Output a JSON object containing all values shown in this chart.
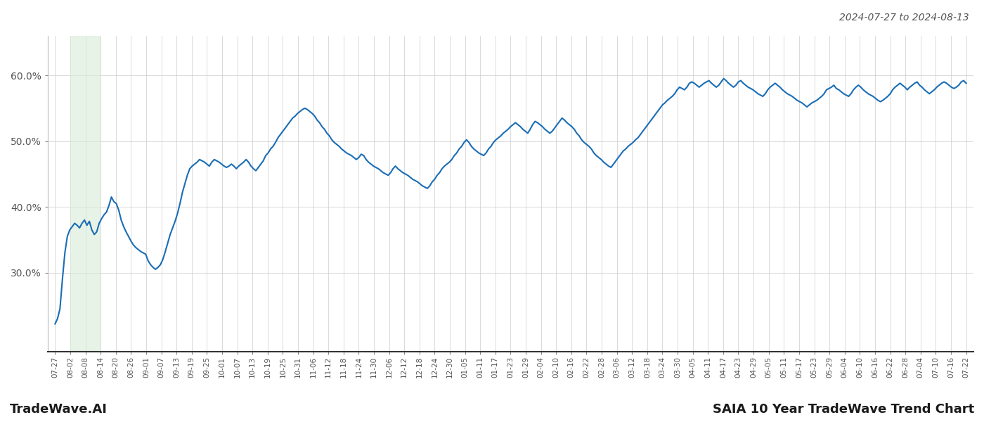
{
  "title_top_right": "2024-07-27 to 2024-08-13",
  "title_bottom_left": "TradeWave.AI",
  "title_bottom_right": "SAIA 10 Year TradeWave Trend Chart",
  "line_color": "#1a6db5",
  "line_width": 1.5,
  "background_color": "#ffffff",
  "grid_color": "#cccccc",
  "shade_color": "#d6ecd6",
  "shade_alpha": 0.6,
  "ylim": [
    0.18,
    0.66
  ],
  "yticks": [
    0.3,
    0.4,
    0.5,
    0.6
  ],
  "ytick_labels": [
    "30.0%",
    "40.0%",
    "50.0%",
    "60.0%"
  ],
  "x_labels": [
    "07-27",
    "08-02",
    "08-08",
    "08-14",
    "08-20",
    "08-26",
    "09-01",
    "09-07",
    "09-13",
    "09-19",
    "09-25",
    "10-01",
    "10-07",
    "10-13",
    "10-19",
    "10-25",
    "10-31",
    "11-06",
    "11-12",
    "11-18",
    "11-24",
    "11-30",
    "12-06",
    "12-12",
    "12-18",
    "12-24",
    "12-30",
    "01-05",
    "01-11",
    "01-17",
    "01-23",
    "01-29",
    "02-04",
    "02-10",
    "02-16",
    "02-22",
    "02-28",
    "03-06",
    "03-12",
    "03-18",
    "03-24",
    "03-30",
    "04-05",
    "04-11",
    "04-17",
    "04-23",
    "04-29",
    "05-05",
    "05-11",
    "05-17",
    "05-23",
    "05-29",
    "06-04",
    "06-10",
    "06-16",
    "06-22",
    "06-28",
    "07-04",
    "07-10",
    "07-16",
    "07-22"
  ],
  "shade_start_label": "08-02",
  "shade_end_label": "08-14",
  "y_values": [
    0.222,
    0.23,
    0.245,
    0.29,
    0.33,
    0.355,
    0.365,
    0.37,
    0.375,
    0.372,
    0.368,
    0.375,
    0.38,
    0.372,
    0.378,
    0.365,
    0.358,
    0.362,
    0.375,
    0.382,
    0.388,
    0.392,
    0.402,
    0.415,
    0.408,
    0.405,
    0.395,
    0.38,
    0.37,
    0.362,
    0.355,
    0.348,
    0.342,
    0.338,
    0.335,
    0.332,
    0.33,
    0.328,
    0.318,
    0.312,
    0.308,
    0.305,
    0.308,
    0.312,
    0.32,
    0.332,
    0.345,
    0.358,
    0.368,
    0.378,
    0.39,
    0.405,
    0.422,
    0.435,
    0.448,
    0.458,
    0.462,
    0.465,
    0.468,
    0.472,
    0.47,
    0.468,
    0.465,
    0.462,
    0.468,
    0.472,
    0.47,
    0.468,
    0.465,
    0.462,
    0.46,
    0.462,
    0.465,
    0.462,
    0.458,
    0.462,
    0.465,
    0.468,
    0.472,
    0.468,
    0.462,
    0.458,
    0.455,
    0.46,
    0.465,
    0.47,
    0.478,
    0.482,
    0.488,
    0.492,
    0.498,
    0.505,
    0.51,
    0.515,
    0.52,
    0.525,
    0.53,
    0.535,
    0.538,
    0.542,
    0.545,
    0.548,
    0.55,
    0.548,
    0.545,
    0.542,
    0.538,
    0.532,
    0.528,
    0.522,
    0.518,
    0.512,
    0.508,
    0.502,
    0.498,
    0.495,
    0.492,
    0.488,
    0.485,
    0.482,
    0.48,
    0.478,
    0.475,
    0.472,
    0.475,
    0.48,
    0.478,
    0.472,
    0.468,
    0.465,
    0.462,
    0.46,
    0.458,
    0.455,
    0.452,
    0.45,
    0.448,
    0.452,
    0.458,
    0.462,
    0.458,
    0.455,
    0.452,
    0.45,
    0.448,
    0.445,
    0.442,
    0.44,
    0.438,
    0.435,
    0.432,
    0.43,
    0.428,
    0.432,
    0.438,
    0.442,
    0.448,
    0.452,
    0.458,
    0.462,
    0.465,
    0.468,
    0.472,
    0.478,
    0.482,
    0.488,
    0.492,
    0.498,
    0.502,
    0.498,
    0.492,
    0.488,
    0.485,
    0.482,
    0.48,
    0.478,
    0.482,
    0.488,
    0.492,
    0.498,
    0.502,
    0.505,
    0.508,
    0.512,
    0.515,
    0.518,
    0.522,
    0.525,
    0.528,
    0.525,
    0.522,
    0.518,
    0.515,
    0.512,
    0.518,
    0.525,
    0.53,
    0.528,
    0.525,
    0.522,
    0.518,
    0.515,
    0.512,
    0.515,
    0.52,
    0.525,
    0.53,
    0.535,
    0.532,
    0.528,
    0.525,
    0.522,
    0.518,
    0.512,
    0.508,
    0.502,
    0.498,
    0.495,
    0.492,
    0.488,
    0.482,
    0.478,
    0.475,
    0.472,
    0.468,
    0.465,
    0.462,
    0.46,
    0.465,
    0.47,
    0.475,
    0.48,
    0.485,
    0.488,
    0.492,
    0.495,
    0.498,
    0.502,
    0.505,
    0.51,
    0.515,
    0.52,
    0.525,
    0.53,
    0.535,
    0.54,
    0.545,
    0.55,
    0.555,
    0.558,
    0.562,
    0.565,
    0.568,
    0.572,
    0.578,
    0.582,
    0.58,
    0.578,
    0.582,
    0.588,
    0.59,
    0.588,
    0.585,
    0.582,
    0.585,
    0.588,
    0.59,
    0.592,
    0.588,
    0.585,
    0.582,
    0.585,
    0.59,
    0.595,
    0.592,
    0.588,
    0.585,
    0.582,
    0.585,
    0.59,
    0.592,
    0.588,
    0.585,
    0.582,
    0.58,
    0.578,
    0.575,
    0.572,
    0.57,
    0.568,
    0.572,
    0.578,
    0.582,
    0.585,
    0.588,
    0.585,
    0.582,
    0.578,
    0.575,
    0.572,
    0.57,
    0.568,
    0.565,
    0.562,
    0.56,
    0.558,
    0.555,
    0.552,
    0.555,
    0.558,
    0.56,
    0.562,
    0.565,
    0.568,
    0.572,
    0.578,
    0.58,
    0.582,
    0.585,
    0.58,
    0.578,
    0.575,
    0.572,
    0.57,
    0.568,
    0.572,
    0.578,
    0.582,
    0.585,
    0.582,
    0.578,
    0.575,
    0.572,
    0.57,
    0.568,
    0.565,
    0.562,
    0.56,
    0.562,
    0.565,
    0.568,
    0.572,
    0.578,
    0.582,
    0.585,
    0.588,
    0.585,
    0.582,
    0.578,
    0.582,
    0.585,
    0.588,
    0.59,
    0.585,
    0.582,
    0.578,
    0.575,
    0.572,
    0.575,
    0.578,
    0.582,
    0.585,
    0.588,
    0.59,
    0.588,
    0.585,
    0.582,
    0.58,
    0.582,
    0.585,
    0.59,
    0.592,
    0.588
  ]
}
